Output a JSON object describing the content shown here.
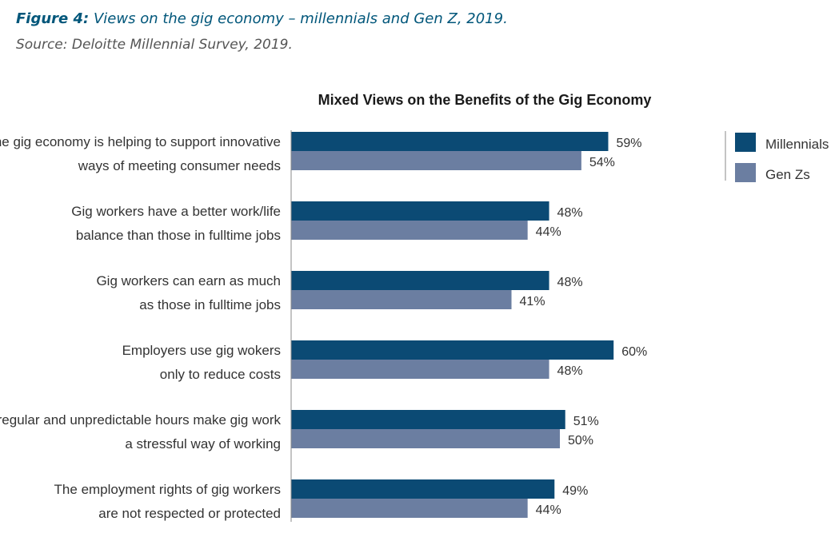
{
  "caption": {
    "figure_label": "Figure 4:",
    "figure_text": "Views on the gig economy – millennials and Gen Z, 2019.",
    "source": "Source: Deloitte Millennial Survey, 2019."
  },
  "colors": {
    "millennials": "#0b4a74",
    "genz": "#6b7ea1",
    "axis": "#8a8a8a",
    "caption": "#00567a"
  },
  "chart_data": {
    "type": "bar",
    "orientation": "horizontal",
    "title": "Mixed Views on the Benefits of the Gig Economy",
    "xlabel": "",
    "ylabel": "",
    "xlim": [
      0,
      70
    ],
    "grid": false,
    "legend": "top-right",
    "value_suffix": "%",
    "categories": [
      [
        "The gig economy is helping to support innovative",
        "ways of meeting consumer needs"
      ],
      [
        "Gig workers have a better work/life",
        "balance than those in fulltime jobs"
      ],
      [
        "Gig workers can earn as much",
        "as those in fulltime jobs"
      ],
      [
        "Employers use gig wokers",
        "only to reduce costs"
      ],
      [
        "Irregular and unpredictable hours make gig work",
        "a stressful way of working"
      ],
      [
        "The employment rights of gig workers",
        "are not respected or protected"
      ]
    ],
    "series": [
      {
        "name": "Millennials",
        "values": [
          59,
          48,
          48,
          60,
          51,
          49
        ]
      },
      {
        "name": "Gen Zs",
        "values": [
          54,
          44,
          41,
          48,
          50,
          44
        ]
      }
    ]
  }
}
